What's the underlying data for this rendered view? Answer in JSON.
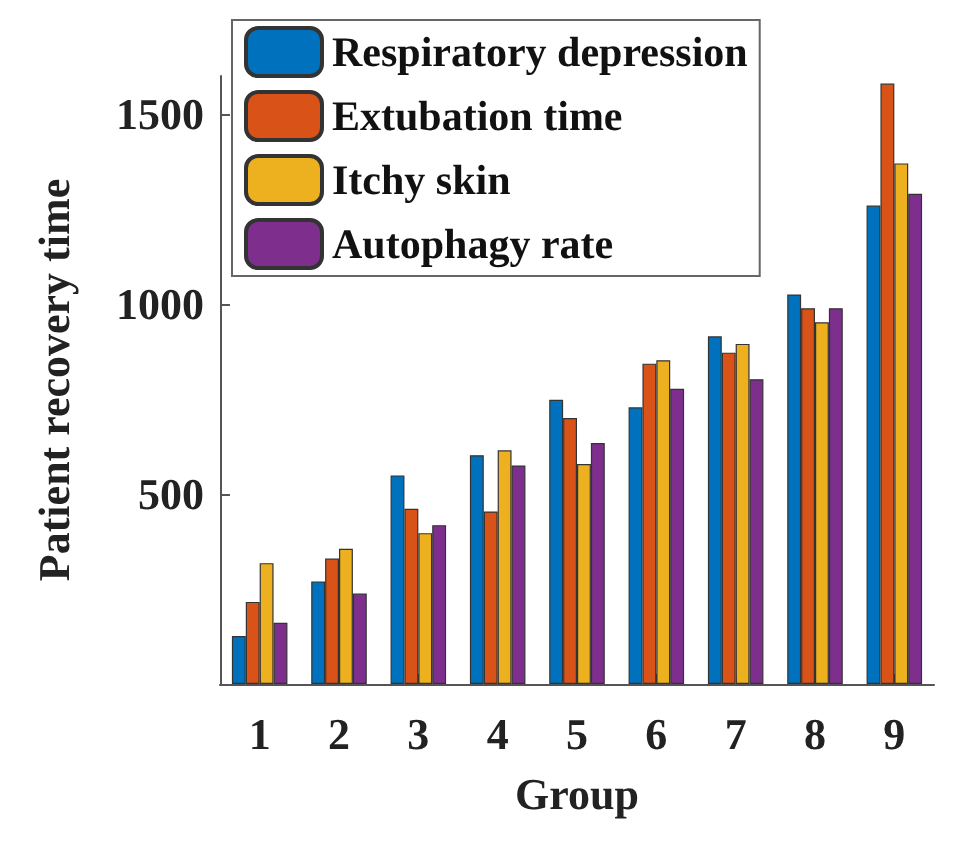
{
  "chart_data": {
    "type": "bar",
    "xlabel": "Group",
    "ylabel": "Patient recovery time",
    "categories": [
      "1",
      "2",
      "3",
      "4",
      "5",
      "6",
      "7",
      "8",
      "9"
    ],
    "series": [
      {
        "name": "Respiratory depression",
        "color": "#0072bd",
        "values": [
          126,
          270,
          549,
          602,
          748,
          728,
          915,
          1025,
          1259
        ]
      },
      {
        "name": "Extubation time",
        "color": "#d95319",
        "values": [
          216,
          330,
          461,
          454,
          700,
          843,
          872,
          989,
          1580
        ]
      },
      {
        "name": "Itchy skin",
        "color": "#edb120",
        "values": [
          318,
          356,
          397,
          615,
          579,
          852,
          895,
          952,
          1370
        ]
      },
      {
        "name": "Autophagy rate",
        "color": "#7e2f8e",
        "values": [
          161,
          238,
          418,
          575,
          634,
          777,
          802,
          989,
          1290
        ]
      }
    ],
    "ylim": [
      0,
      1600
    ],
    "yticks": [
      500,
      1000,
      1500
    ],
    "grid": false,
    "legend": "top left"
  }
}
